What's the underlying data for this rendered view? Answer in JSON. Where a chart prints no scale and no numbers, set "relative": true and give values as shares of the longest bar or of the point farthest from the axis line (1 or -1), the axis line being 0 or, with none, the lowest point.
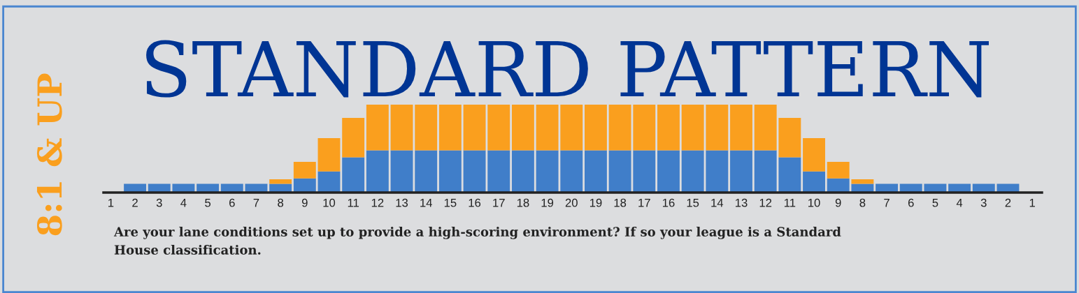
{
  "chart_data": {
    "type": "bar",
    "title": "STANDARD PATTERN",
    "subtitle": "8:1 & UP",
    "categories": [
      "1",
      "2",
      "3",
      "4",
      "5",
      "6",
      "7",
      "8",
      "9",
      "10",
      "11",
      "12",
      "13",
      "14",
      "15",
      "16",
      "17",
      "18",
      "19",
      "20",
      "19",
      "18",
      "17",
      "16",
      "15",
      "14",
      "13",
      "12",
      "11",
      "10",
      "9",
      "8",
      "7",
      "6",
      "5",
      "4",
      "3",
      "2",
      "1"
    ],
    "stacked": true,
    "relative": true,
    "grid": false,
    "legend": false,
    "series": [
      {
        "color": "#407ec9",
        "values": [
          null,
          0.1,
          0.1,
          0.1,
          0.1,
          0.1,
          0.1,
          0.1,
          0.16,
          0.24,
          0.4,
          0.48,
          0.48,
          0.48,
          0.48,
          0.48,
          0.48,
          0.48,
          0.48,
          0.48,
          0.48,
          0.48,
          0.48,
          0.48,
          0.48,
          0.48,
          0.48,
          0.48,
          0.4,
          0.24,
          0.16,
          0.1,
          0.1,
          0.1,
          0.1,
          0.1,
          0.1,
          0.1,
          null
        ]
      },
      {
        "color": "#fa9f1e",
        "values": [
          null,
          null,
          null,
          null,
          null,
          null,
          null,
          0.05,
          0.19,
          0.38,
          0.45,
          0.52,
          0.52,
          0.52,
          0.52,
          0.52,
          0.52,
          0.52,
          0.52,
          0.52,
          0.52,
          0.52,
          0.52,
          0.52,
          0.52,
          0.52,
          0.52,
          0.52,
          0.45,
          0.38,
          0.19,
          0.05,
          null,
          null,
          null,
          null,
          null,
          null,
          null
        ]
      }
    ],
    "annotations": [
      "Are your lane conditions set up to provide a high-scoring environment? If so your league is a Standard\nHouse classification."
    ]
  }
}
